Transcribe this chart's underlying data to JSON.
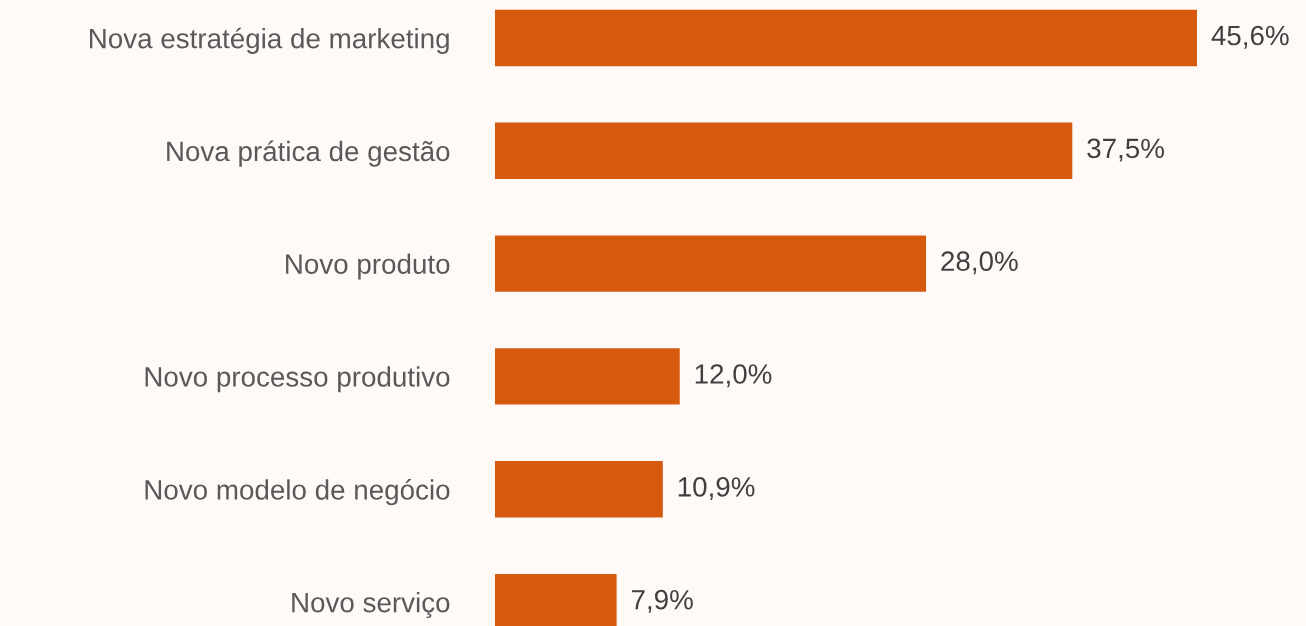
{
  "chart_data": {
    "type": "bar",
    "orientation": "horizontal",
    "categories": [
      "Nova estratégia de marketing",
      "Nova prática de gestão",
      "Novo produto",
      "Novo processo produtivo",
      "Novo modelo de negócio",
      "Novo serviço"
    ],
    "values": [
      45.6,
      37.5,
      28.0,
      12.0,
      10.9,
      7.9
    ],
    "value_labels": [
      "45,6%",
      "37,5%",
      "28,0%",
      "12,0%",
      "10,9%",
      "7,9%"
    ],
    "color": "#d55a0e",
    "grid": false,
    "legend": false
  }
}
